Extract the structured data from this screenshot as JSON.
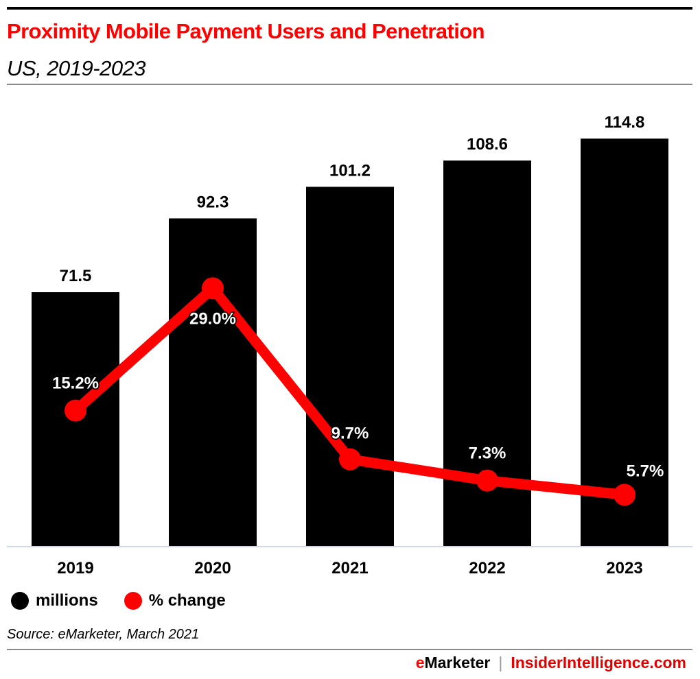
{
  "header": {
    "title": "Proximity Mobile Payment Users and Penetration",
    "subtitle": "US, 2019-2023"
  },
  "colors": {
    "title": "#ff0000",
    "bars": "#000000",
    "line": "#ff0000",
    "baseline": "#cfd8e3"
  },
  "chart_data": {
    "type": "bar+line",
    "title": "Proximity Mobile Payment Users and Penetration",
    "subtitle": "US, 2019-2023",
    "categories": [
      "2019",
      "2020",
      "2021",
      "2022",
      "2023"
    ],
    "series": [
      {
        "name": "millions",
        "type": "bar",
        "color": "#000000",
        "values": [
          71.5,
          92.3,
          101.2,
          108.6,
          114.8
        ],
        "labels": [
          "71.5",
          "92.3",
          "101.2",
          "108.6",
          "114.8"
        ]
      },
      {
        "name": "% change",
        "type": "line",
        "color": "#ff0000",
        "values": [
          15.2,
          29.0,
          9.7,
          7.3,
          5.7
        ],
        "labels": [
          "15.2%",
          "29.0%",
          "9.7%",
          "7.3%",
          "5.7%"
        ]
      }
    ],
    "xlabel": "",
    "ylabel": "",
    "ylim": [
      0,
      114.8
    ],
    "ylim_secondary": [
      0,
      29.0
    ],
    "grid": false,
    "legend": "bottom-left"
  },
  "legend": {
    "items": [
      {
        "label": "millions",
        "color": "#000000"
      },
      {
        "label": "% change",
        "color": "#ff0000"
      }
    ]
  },
  "footer": {
    "source": "Source: eMarketer, March 2021",
    "brand_e": "e",
    "brand_marketer": "Marketer",
    "brand_separator": "|",
    "brand_ii": "InsiderIntelligence.com"
  }
}
